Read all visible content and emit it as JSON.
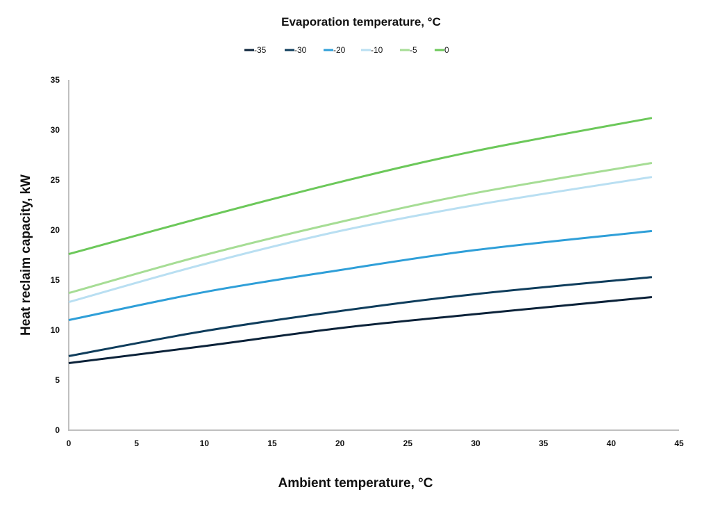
{
  "chart_data": {
    "type": "line",
    "title": "Evaporation temperature, °C",
    "xlabel": "Ambient temperature, °C",
    "ylabel": "Heat reclaim capacity, kW",
    "xlim": [
      0,
      45
    ],
    "ylim": [
      0,
      35
    ],
    "xticks": [
      "0",
      "5",
      "10",
      "15",
      "20",
      "25",
      "30",
      "35",
      "40",
      "45"
    ],
    "yticks": [
      "0",
      "5",
      "10",
      "15",
      "20",
      "25",
      "30",
      "35"
    ],
    "grid": false,
    "legend_position": "top-center",
    "x": [
      0,
      10,
      20,
      30,
      43
    ],
    "series": [
      {
        "name": "-35",
        "color": "#0b2239",
        "values": [
          6.7,
          8.4,
          10.2,
          11.6,
          13.3
        ]
      },
      {
        "name": "-30",
        "color": "#0f3d5c",
        "values": [
          7.4,
          9.9,
          11.9,
          13.6,
          15.3
        ]
      },
      {
        "name": "-20",
        "color": "#2f9fd8",
        "values": [
          11.0,
          13.8,
          16.0,
          18.0,
          19.9
        ]
      },
      {
        "name": "-10",
        "color": "#b9dff2",
        "values": [
          12.8,
          16.6,
          19.9,
          22.5,
          25.3
        ]
      },
      {
        "name": "-5",
        "color": "#a6dd95",
        "values": [
          13.7,
          17.5,
          20.8,
          23.7,
          26.7
        ]
      },
      {
        "name": "0",
        "color": "#6cc85a",
        "values": [
          17.6,
          21.3,
          24.8,
          27.9,
          31.2
        ]
      }
    ]
  }
}
